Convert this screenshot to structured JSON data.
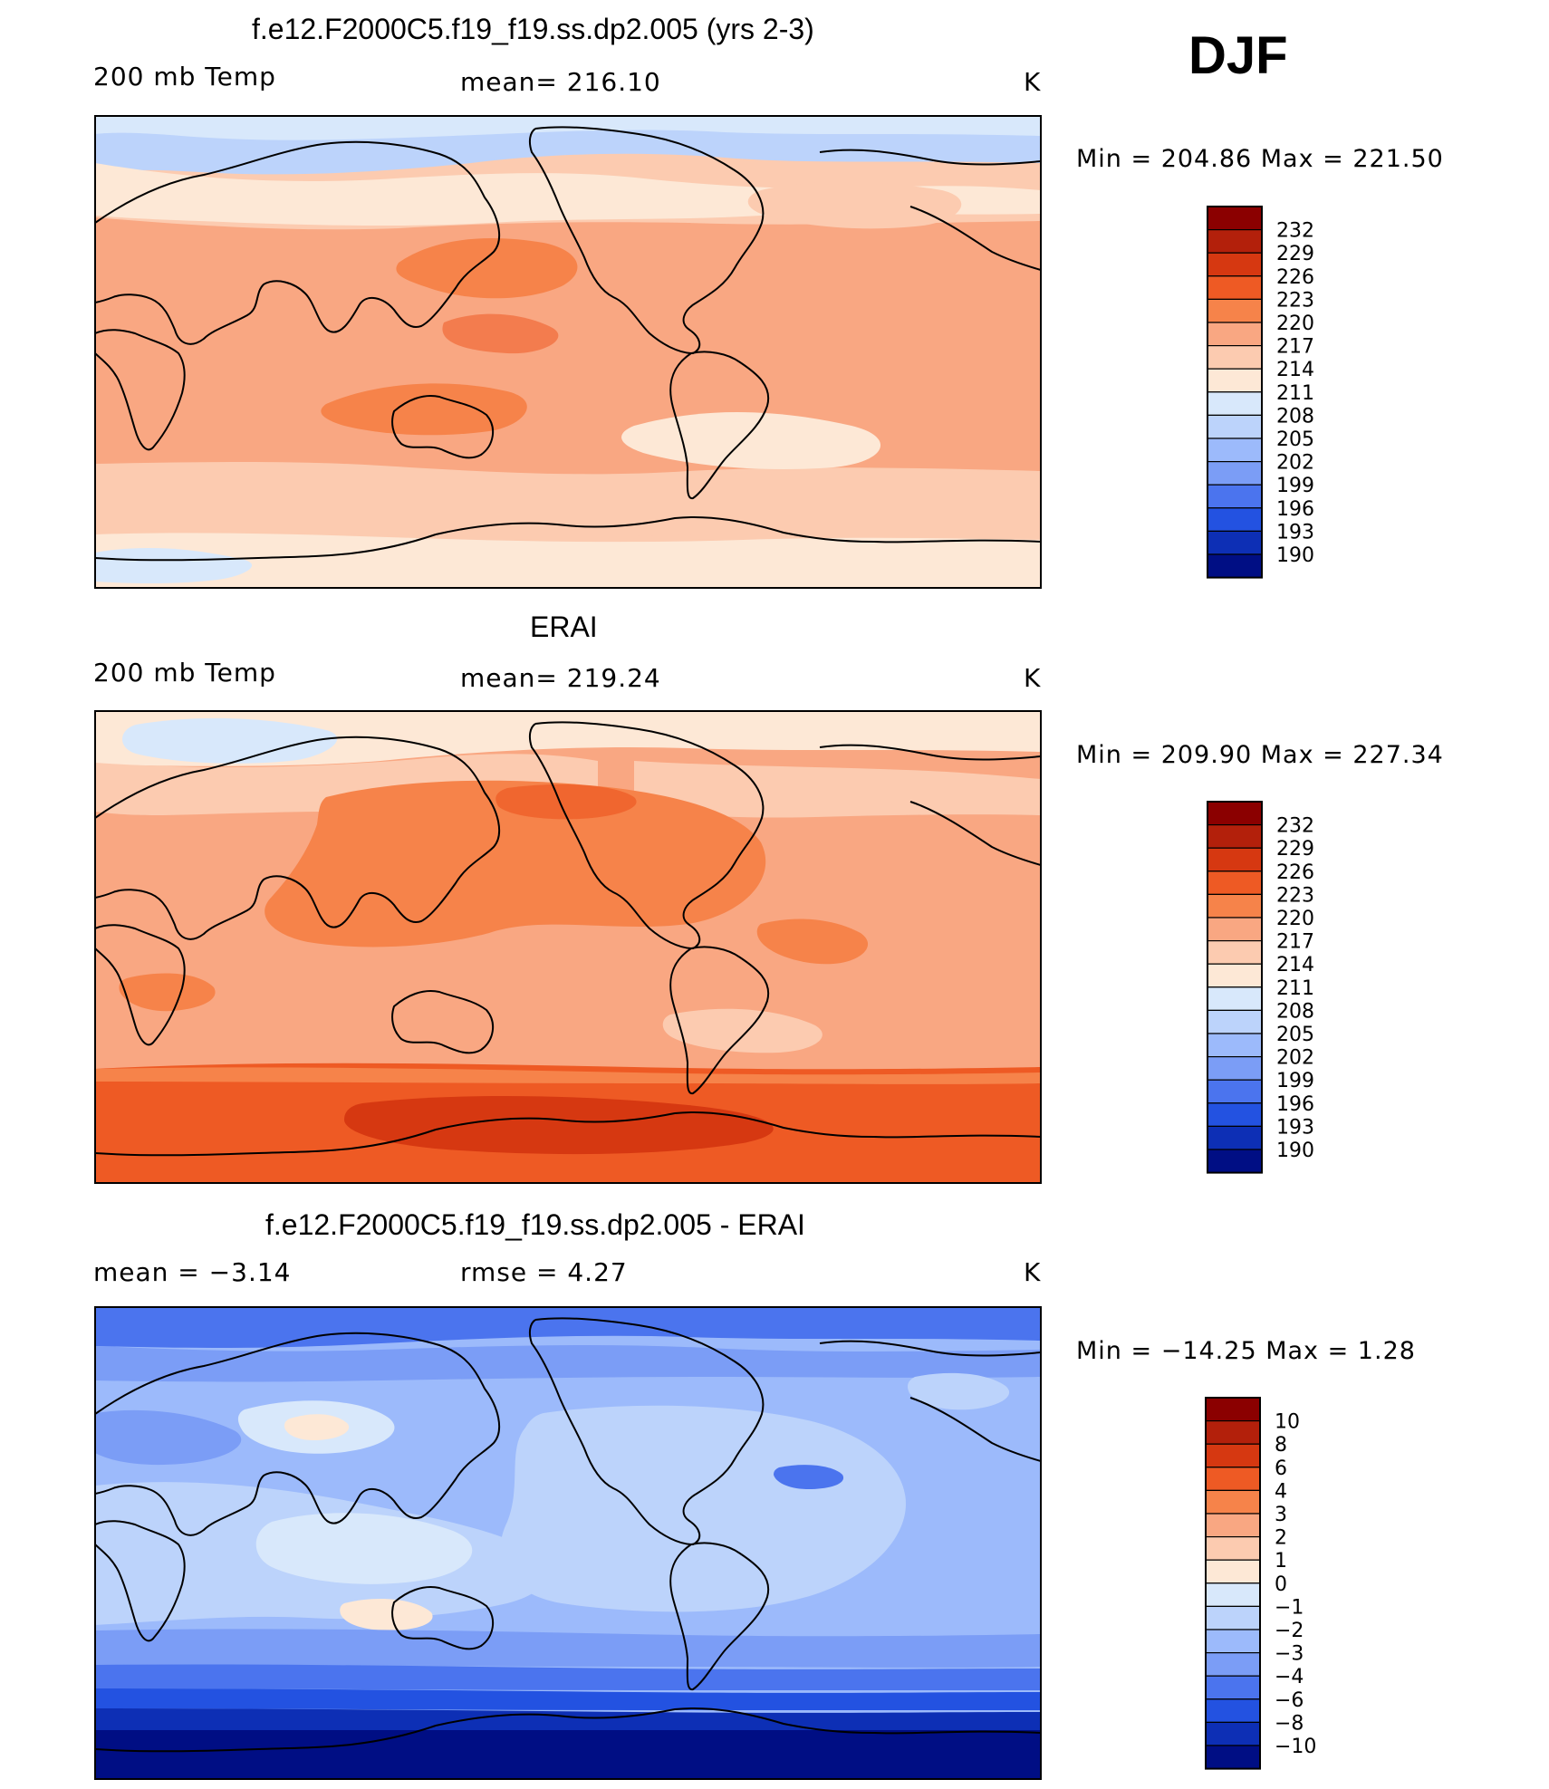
{
  "season": "DJF",
  "panels": [
    {
      "title": "f.e12.F2000C5.f19_f19.ss.dp2.005 (yrs 2-3)",
      "left": "200 mb Temp",
      "center": "mean=  216.10",
      "units": "K",
      "minmax": "Min  =  204.86  Max  =  221.50"
    },
    {
      "title": "ERAI",
      "left": "200 mb Temp",
      "center": "mean=  219.24",
      "units": "K",
      "minmax": "Min  =  209.90  Max  =  227.34"
    },
    {
      "title": "f.e12.F2000C5.f19_f19.ss.dp2.005 - ERAI",
      "left": "mean  =    −3.14",
      "center": "rmse  =     4.27",
      "units": "K",
      "minmax": "Min  =  −14.25  Max  =      1.28"
    }
  ],
  "chart_data": [
    {
      "type": "heatmap",
      "title": "f.e12.F2000C5.f19_f19.ss.dp2.005 (yrs 2-3)",
      "variable": "200 mb Temp",
      "units": "K",
      "mean": 216.1,
      "min": 204.86,
      "max": 221.5,
      "colorbar_levels": [
        232,
        229,
        226,
        223,
        220,
        217,
        214,
        211,
        208,
        205,
        202,
        199,
        196,
        193,
        190
      ],
      "colorbar_colors": [
        "#8b0000",
        "#b3200b",
        "#d63811",
        "#ee5a24",
        "#f6834a",
        "#f9a782",
        "#fccbb0",
        "#fde8d6",
        "#d8e8fb",
        "#bcd3fb",
        "#9cbafb",
        "#7b9df6",
        "#4b74ee",
        "#2352e1",
        "#0d2fb5",
        "#000e84"
      ]
    },
    {
      "type": "heatmap",
      "title": "ERAI",
      "variable": "200 mb Temp",
      "units": "K",
      "mean": 219.24,
      "min": 209.9,
      "max": 227.34,
      "colorbar_levels": [
        232,
        229,
        226,
        223,
        220,
        217,
        214,
        211,
        208,
        205,
        202,
        199,
        196,
        193,
        190
      ],
      "colorbar_colors": [
        "#8b0000",
        "#b3200b",
        "#d63811",
        "#ee5a24",
        "#f6834a",
        "#f9a782",
        "#fccbb0",
        "#fde8d6",
        "#d8e8fb",
        "#bcd3fb",
        "#9cbafb",
        "#7b9df6",
        "#4b74ee",
        "#2352e1",
        "#0d2fb5",
        "#000e84"
      ]
    },
    {
      "type": "heatmap",
      "title": "f.e12.F2000C5.f19_f19.ss.dp2.005 - ERAI",
      "units": "K",
      "mean": -3.14,
      "rmse": 4.27,
      "min": -14.25,
      "max": 1.28,
      "colorbar_levels": [
        "10",
        "8",
        "6",
        "4",
        "3",
        "2",
        "1",
        "0",
        "−1",
        "−2",
        "−3",
        "−4",
        "−6",
        "−8",
        "−10"
      ],
      "colorbar_colors": [
        "#8b0000",
        "#b3200b",
        "#d63811",
        "#ee5a24",
        "#f6834a",
        "#f9a782",
        "#fccbb0",
        "#fde8d6",
        "#d8e8fb",
        "#bcd3fb",
        "#9cbafb",
        "#7b9df6",
        "#4b74ee",
        "#2352e1",
        "#0d2fb5",
        "#000e84"
      ]
    }
  ]
}
